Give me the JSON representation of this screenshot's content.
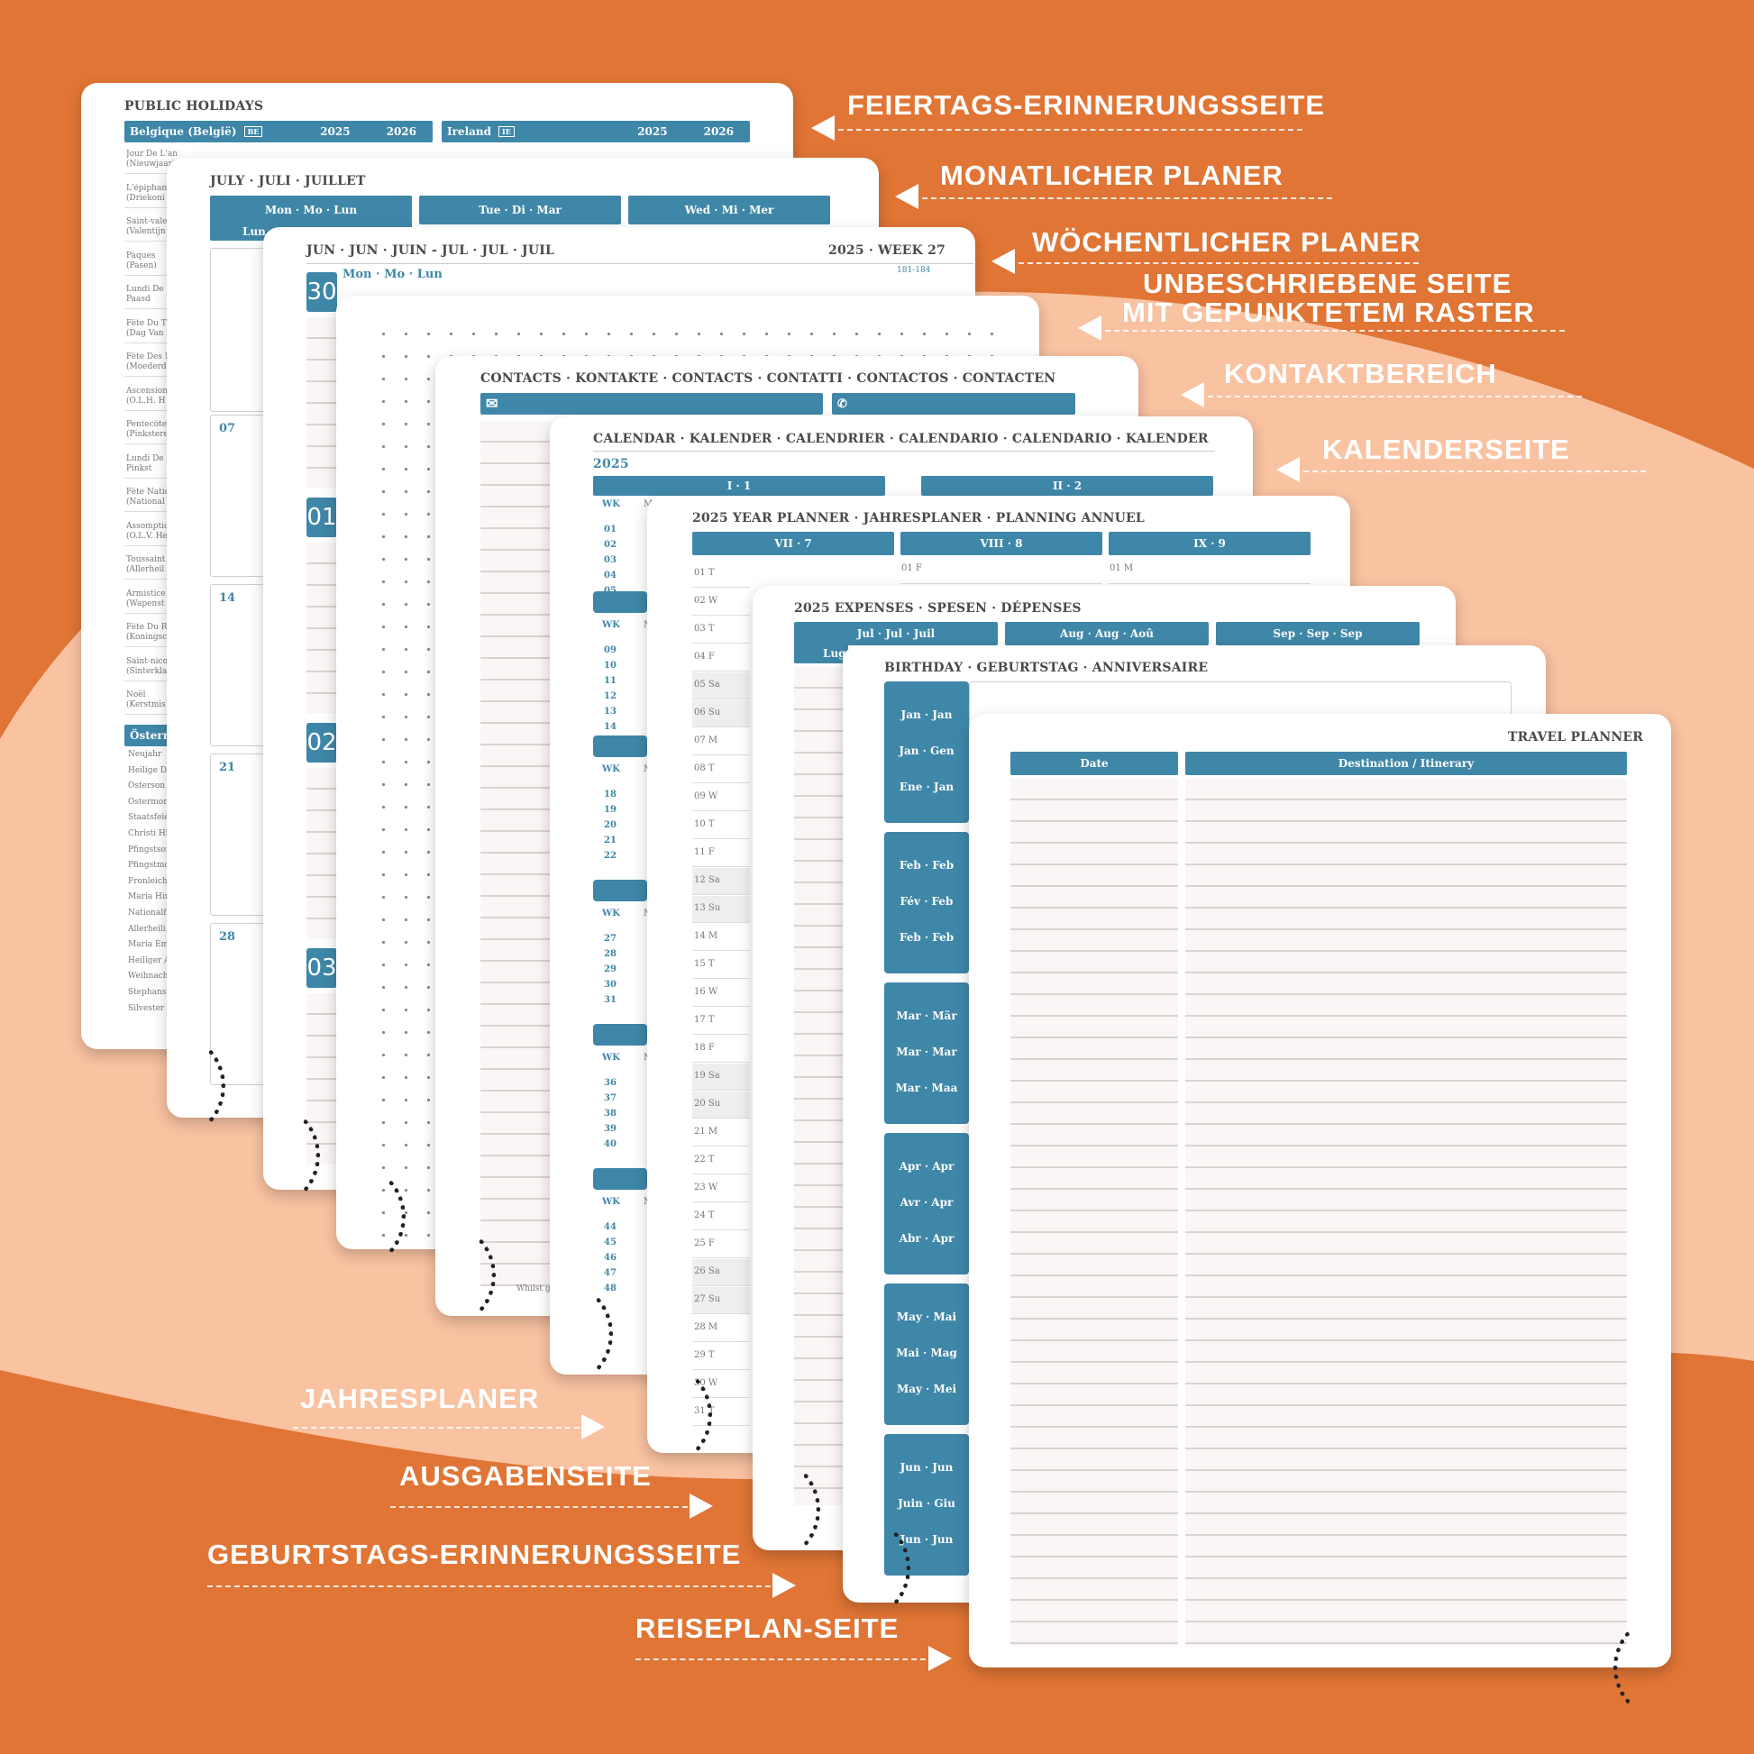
{
  "colors": {
    "background": "#e07535",
    "accent": "#3f87a8",
    "peach": "#f9c2a1",
    "page": "#ffffff"
  },
  "holidays": {
    "title": "PUBLIC HOLIDAYS",
    "col1": "Belgique (België)",
    "col1_flag": "BE",
    "col2": "Ireland",
    "col2_flag": "IE",
    "y1": "2025",
    "y2": "2026",
    "rows": [
      "Jour De L'an (Nieuwjaar)",
      "L'épiphanie (Driekoni",
      "Saint-vale (Valentijn",
      "Pâques (Pasen)",
      "Lundi De (2e Paasd",
      "Fête Du T (Dag Van",
      "Fête Des M (Moederd",
      "Ascension (O.L.H. H",
      "Pentecôte (Pinksteren",
      "Lundi De (2e Pinkst",
      "Fête Natio (National",
      "Assomptio (O.L.V. He",
      "Toussaint (Allerheil",
      "Armistice (Wapenst",
      "Fête Du R (Koningsc",
      "Saint-nico (Sinterkla",
      "Noël (Kerstmis"
    ],
    "austria_title": "Österre",
    "austria": [
      "Neujahr",
      "Heilige Dr",
      "Osterson",
      "Ostermon",
      "Staatsfeie",
      "Christi Hi",
      "Pfingstson",
      "Pfingstmo",
      "Fronleich",
      "Maria Hir",
      "Nationalf",
      "Allerheili",
      "Maria Em",
      "Heiliger A",
      "Weihnach",
      "Stephanst",
      "Silvester"
    ]
  },
  "monthly": {
    "title": "JULY · JULI · JUILLET",
    "bars": [
      "Mon · Mo · Lun",
      "Tue · Di · Mar",
      "Wed · Mi · Mer"
    ],
    "sub": "Lun",
    "weeks": [
      "07",
      "14",
      "21",
      "28"
    ]
  },
  "weekly": {
    "title": "JUN · JUN · JUIN - JUL · JUL · JUIL",
    "week": "2025 · WEEK 27",
    "days": "181-184",
    "dayhdr": "Mon · Mo · Lun",
    "dates": [
      "30",
      "01",
      "02",
      "03"
    ]
  },
  "contacts": {
    "title": "CONTACTS · KONTAKTE · CONTACTS · CONTATTI · CONTACTOS · CONTACTEN",
    "footer": "Whilst g"
  },
  "calendar": {
    "title": "CALENDAR · KALENDER · CALENDRIER · CALENDARIO · CALENDARIO · KALENDER",
    "year": "2025",
    "q1": "I · 1",
    "q2": "II · 2",
    "wk": "WK",
    "m": "M",
    "groups": [
      [
        "01",
        "02",
        "03",
        "04",
        "05"
      ],
      [
        "09",
        "10",
        "11",
        "12",
        "13",
        "14"
      ],
      [
        "18",
        "19",
        "20",
        "21",
        "22"
      ],
      [
        "27",
        "28",
        "29",
        "30",
        "31"
      ],
      [
        "36",
        "37",
        "38",
        "39",
        "40"
      ],
      [
        "44",
        "45",
        "46",
        "47",
        "48"
      ]
    ]
  },
  "yearplanner": {
    "title": "2025 YEAR PLANNER · JAHRESPLANER · PLANNING ANNUEL",
    "months": [
      "VII · 7",
      "VIII · 8",
      "IX · 9"
    ],
    "col2": "01 F",
    "col3": "01 M",
    "days": [
      "01 T",
      "02 W",
      "03 T",
      "04 F",
      "05 Sa",
      "06 Su",
      "07 M",
      "08 T",
      "09 W",
      "10 T",
      "11 F",
      "12 Sa",
      "13 Su",
      "14 M",
      "15 T",
      "16 W",
      "17 T",
      "18 F",
      "19 Sa",
      "20 Su",
      "21 M",
      "22 T",
      "23 W",
      "24 T",
      "25 F",
      "26 Sa",
      "27 Su",
      "28 M",
      "29 T",
      "30 W",
      "31 T"
    ]
  },
  "expenses": {
    "title": "2025 EXPENSES · SPESEN · DÉPENSES",
    "bars": [
      "Jul · Jul · Juil",
      "Aug · Aug · Aoû",
      "Sep · Sep · Sep"
    ],
    "sub": "Lug"
  },
  "birthday": {
    "title": "BIRTHDAY · GEBURTSTAG · ANNIVERSAIRE",
    "blocks": [
      [
        "Jan · Jan",
        "Jan · Gen",
        "Ene · Jan"
      ],
      [
        "Feb · Feb",
        "Fév · Feb",
        "Feb · Feb"
      ],
      [
        "Mar · Mär",
        "Mar · Mar",
        "Mar · Maa"
      ],
      [
        "Apr · Apr",
        "Avr · Apr",
        "Abr · Apr"
      ],
      [
        "May · Mai",
        "Mai · Mag",
        "May · Mei"
      ],
      [
        "Jun · Jun",
        "Juin · Giu",
        "Jun · Jun"
      ]
    ]
  },
  "travel": {
    "title": "TRAVEL PLANNER",
    "col_date": "Date",
    "col_dest": "Destination / Itinerary"
  },
  "labels": {
    "holidays": "FEIERTAGS-ERINNERUNGSSEITE",
    "monthly": "MONATLICHER PLANER",
    "weekly": "WÖCHENTLICHER PLANER",
    "dotted1": "UNBESCHRIEBENE SEITE",
    "dotted2": "MIT GEPUNKTETEM RASTER",
    "contacts": "KONTAKTBEREICH",
    "calendar": "KALENDERSEITE",
    "yearplanner": "JAHRESPLANER",
    "expenses": "AUSGABENSEITE",
    "birthday": "GEBURTSTAGS-ERINNERUNGSSEITE",
    "travel": "REISEPLAN-SEITE"
  }
}
